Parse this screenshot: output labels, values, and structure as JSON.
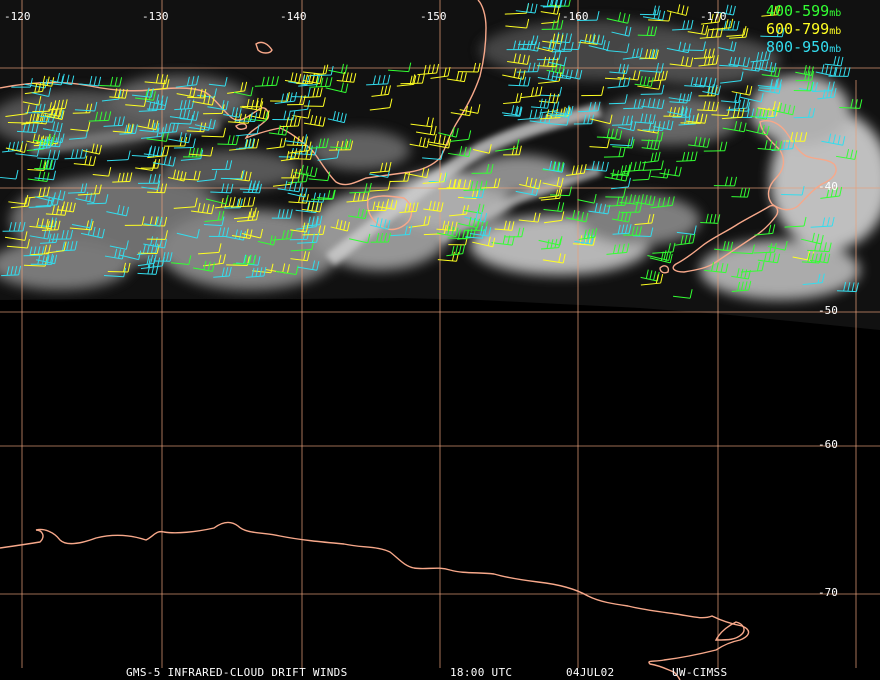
{
  "map": {
    "longitude_labels": [
      "-120",
      "-130",
      "-140",
      "-150",
      "-160",
      "-170"
    ],
    "latitude_labels": [
      "-40",
      "-50",
      "-60",
      "-70"
    ]
  },
  "legend": {
    "items": [
      {
        "range": "400-599",
        "unit": "mb",
        "color": "#33ff33"
      },
      {
        "range": "600-799",
        "unit": "mb",
        "color": "#ffff22"
      },
      {
        "range": "800-950",
        "unit": "mb",
        "color": "#33ddee"
      }
    ]
  },
  "footer": {
    "product": "GMS-5 INFRARED-CLOUD DRIFT WINDS",
    "time": "18:00 UTC",
    "date": "04JUL02",
    "source": "UW-CIMSS"
  },
  "colors": {
    "grid": "#e8a07a",
    "coast": "#f7a88a",
    "cloud_dark": "#0a0a0a",
    "cloud_bright": "#d8d8d8"
  }
}
